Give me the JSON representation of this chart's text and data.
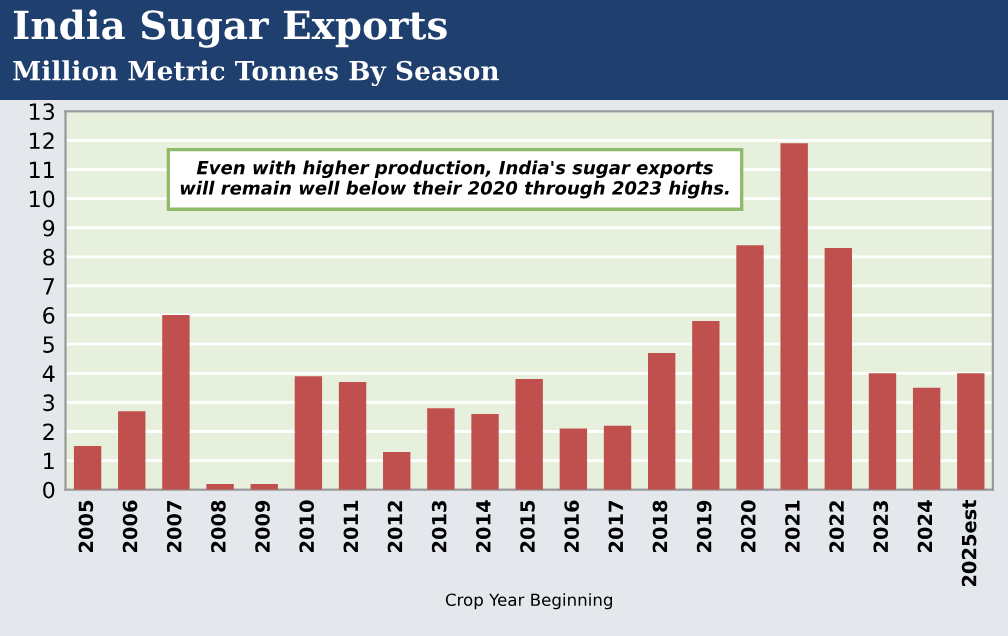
{
  "chart_data": {
    "type": "bar",
    "title": "India Sugar Exports",
    "subtitle": "Million Metric Tonnes By Season",
    "xlabel": "Crop Year Beginning",
    "categories": [
      "2005",
      "2006",
      "2007",
      "2008",
      "2009",
      "2010",
      "2011",
      "2012",
      "2013",
      "2014",
      "2015",
      "2016",
      "2017",
      "2018",
      "2019",
      "2020",
      "2021",
      "2022",
      "2023",
      "2024",
      "2025est"
    ],
    "values": [
      1.5,
      2.7,
      6.0,
      0.2,
      0.2,
      3.9,
      3.7,
      1.3,
      2.8,
      2.6,
      3.8,
      2.1,
      2.2,
      4.7,
      5.8,
      8.4,
      11.9,
      8.3,
      4.0,
      3.5,
      4.0
    ],
    "color": "#c0504d",
    "ylim": [
      0,
      13
    ],
    "yticks": [
      0,
      1,
      2,
      3,
      4,
      5,
      6,
      7,
      8,
      9,
      10,
      11,
      12,
      13
    ],
    "grid": "y",
    "legend": false,
    "annotations": [
      "Even with higher production, India's sugar exports will remain well below their 2020 through 2023 highs."
    ]
  }
}
